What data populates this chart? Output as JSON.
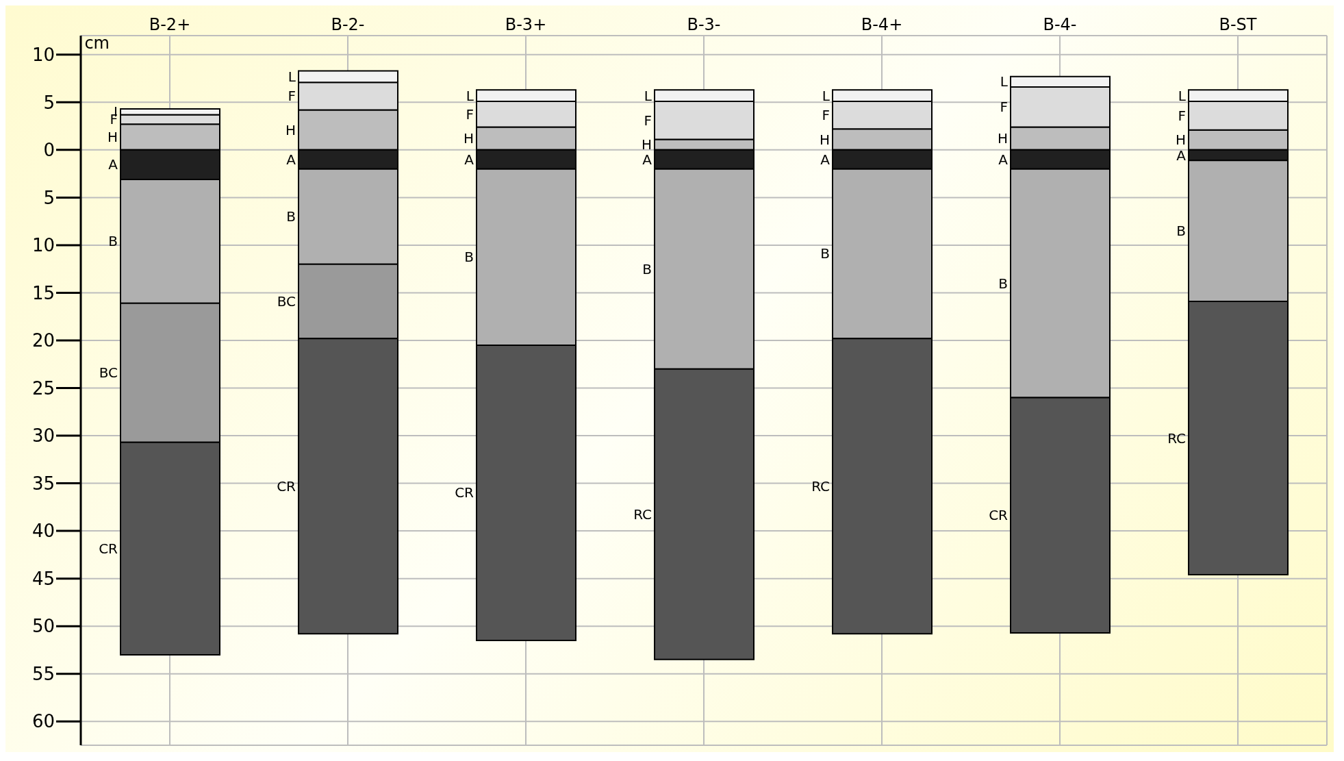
{
  "chart_data": {
    "type": "bar",
    "stacked": true,
    "ylabel": "cm",
    "categories": [
      "B-2+",
      "B-2-",
      "B-3+",
      "B-3-",
      "B-4+",
      "B-4-",
      "B-ST"
    ],
    "series": [
      {
        "color": "#bdbdbd",
        "values": [
          2.7,
          4.2,
          2.4,
          1.1,
          2.2,
          2.4,
          2.1
        ],
        "value_labels": [
          "H",
          "H",
          "H",
          "H",
          "H",
          "H",
          "H"
        ]
      },
      {
        "color": "#dcdcdc",
        "values": [
          1.0,
          2.9,
          2.7,
          4.0,
          2.9,
          4.2,
          3.0
        ],
        "value_labels": [
          "F",
          "F",
          "F",
          "F",
          "F",
          "F",
          "F"
        ]
      },
      {
        "color": "#f2f2f2",
        "values": [
          0.6,
          1.2,
          1.2,
          1.2,
          1.2,
          1.1,
          1.2
        ],
        "value_labels": [
          "I",
          "L",
          "L",
          "L",
          "L",
          "L",
          "L"
        ]
      },
      {
        "color": "#202020",
        "values": [
          -3.1,
          -2,
          -2,
          -2,
          -2,
          -2,
          -1.1
        ],
        "value_labels": [
          "A",
          "A",
          "A",
          "A",
          "A",
          "A",
          "A"
        ]
      },
      {
        "color": "#b0b0b0",
        "values": [
          -13.0,
          -10,
          -18.5,
          -21,
          -17.8,
          -24,
          -14.8
        ],
        "value_labels": [
          "B",
          "B",
          "B",
          "B",
          "B",
          "B",
          "B"
        ]
      },
      {
        "color": "#9a9a9a",
        "values": [
          -14.6,
          -7.8,
          null,
          null,
          null,
          null,
          null
        ],
        "value_labels": [
          "BC",
          "BC",
          null,
          null,
          null,
          null,
          null
        ]
      },
      {
        "color": "#555555",
        "values": [
          -22.3,
          -31,
          -31,
          -30.5,
          -31,
          -24.7,
          -28.7
        ],
        "value_labels": [
          "CR",
          "CR",
          "CR",
          "RC",
          "RC",
          "CR",
          "RC"
        ]
      }
    ],
    "ylim": [
      -62.5,
      12
    ],
    "yticks": [
      {
        "value": 10,
        "label": "10"
      },
      {
        "value": 5,
        "label": "5"
      },
      0,
      {
        "value": -5,
        "label": "5"
      },
      {
        "value": -10,
        "label": "10"
      },
      {
        "value": -15,
        "label": "15"
      },
      {
        "value": -20,
        "label": "20"
      },
      {
        "value": -25,
        "label": "25"
      },
      {
        "value": -30,
        "label": "30"
      },
      {
        "value": -35,
        "label": "35"
      },
      {
        "value": -40,
        "label": "40"
      },
      {
        "value": -45,
        "label": "45"
      },
      {
        "value": -50,
        "label": "50"
      },
      {
        "value": -55,
        "label": "55"
      },
      {
        "value": -60,
        "label": "60"
      }
    ],
    "grid": true
  }
}
